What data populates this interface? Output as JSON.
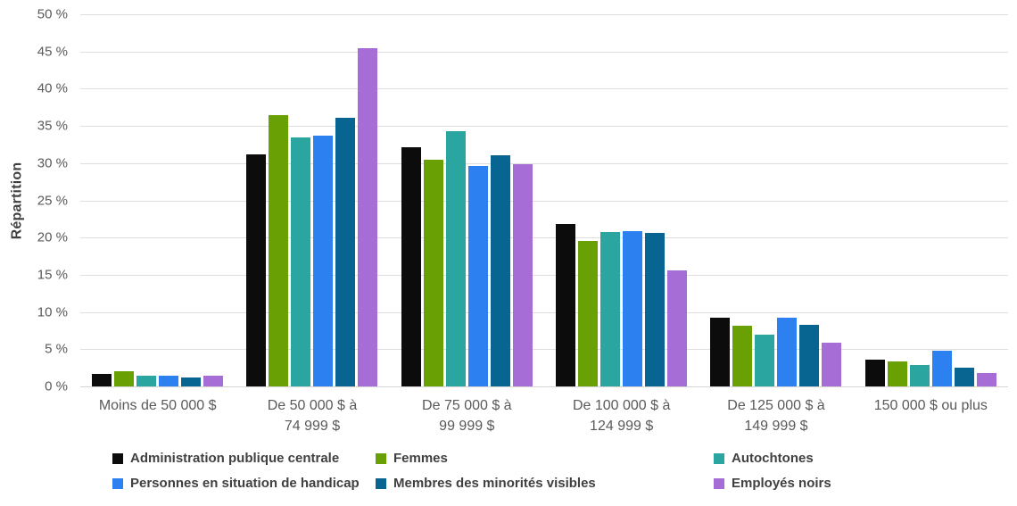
{
  "chart_data": {
    "type": "bar",
    "title": "",
    "xlabel": "",
    "ylabel": "Répartition",
    "ylim": [
      0,
      50
    ],
    "ytick_step": 5,
    "ytick_labels": [
      "0 %",
      "5 %",
      "10 %",
      "15 %",
      "20 %",
      "25 %",
      "30 %",
      "35 %",
      "40 %",
      "45 %",
      "50 %"
    ],
    "grid": true,
    "legend_position": "bottom",
    "categories": [
      "Moins de 50 000 $",
      "De 50 000 $ à\n74 999 $",
      "De 75 000 $ à\n99 999 $",
      "De 100 000 $ à\n124 999 $",
      "De 125 000 $ à\n149 999 $",
      "150 000 $ ou plus"
    ],
    "series": [
      {
        "name": "Administration publique centrale",
        "color": "#0c0c0c",
        "values": [
          1.7,
          31.2,
          32.1,
          21.8,
          9.2,
          3.6
        ]
      },
      {
        "name": "Femmes",
        "color": "#69a004",
        "values": [
          2.1,
          36.4,
          30.4,
          19.5,
          8.1,
          3.3
        ]
      },
      {
        "name": "Autochtones",
        "color": "#2aa5a0",
        "values": [
          1.4,
          33.4,
          34.3,
          20.8,
          7.0,
          2.9
        ]
      },
      {
        "name": "Personnes en situation de handicap",
        "color": "#2d80f0",
        "values": [
          1.5,
          33.7,
          29.6,
          20.9,
          9.2,
          4.8
        ]
      },
      {
        "name": "Membres des minorités visibles",
        "color": "#086490",
        "values": [
          1.2,
          36.1,
          31.0,
          20.6,
          8.3,
          2.5
        ]
      },
      {
        "name": "Employés noirs",
        "color": "#a66dd7",
        "values": [
          1.4,
          45.4,
          29.8,
          15.6,
          5.9,
          1.8
        ]
      }
    ],
    "colors": {
      "gridline": "#dedede",
      "axis_text": "#595959",
      "legend_text": "#404040",
      "y_title_text": "#3f3f3f",
      "background": "#ffffff"
    }
  }
}
